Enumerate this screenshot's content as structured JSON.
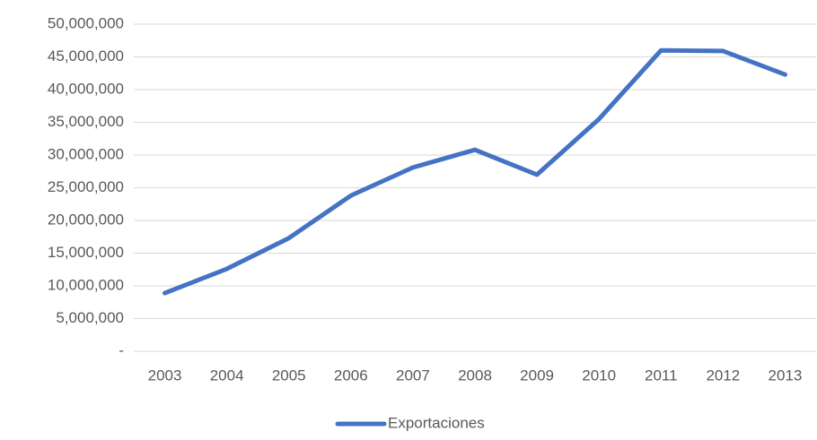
{
  "chart_data": {
    "type": "line",
    "categories": [
      "2003",
      "2004",
      "2005",
      "2006",
      "2007",
      "2008",
      "2009",
      "2010",
      "2011",
      "2012",
      "2013"
    ],
    "series": [
      {
        "name": "Exportaciones",
        "color": "#4472c4",
        "values": [
          8900000,
          12600000,
          17300000,
          23800000,
          28100000,
          30800000,
          27000000,
          35500000,
          46000000,
          45900000,
          42300000
        ]
      }
    ],
    "ylim": [
      0,
      50000000
    ],
    "yticks": [
      {
        "value": 0,
        "label": "-"
      },
      {
        "value": 5000000,
        "label": "5,000,000"
      },
      {
        "value": 10000000,
        "label": "10,000,000"
      },
      {
        "value": 15000000,
        "label": "15,000,000"
      },
      {
        "value": 20000000,
        "label": "20,000,000"
      },
      {
        "value": 25000000,
        "label": "25,000,000"
      },
      {
        "value": 30000000,
        "label": "30,000,000"
      },
      {
        "value": 35000000,
        "label": "35,000,000"
      },
      {
        "value": 40000000,
        "label": "40,000,000"
      },
      {
        "value": 45000000,
        "label": "45,000,000"
      },
      {
        "value": 50000000,
        "label": "50,000,000"
      }
    ],
    "grid": true,
    "legend": "bottom"
  }
}
